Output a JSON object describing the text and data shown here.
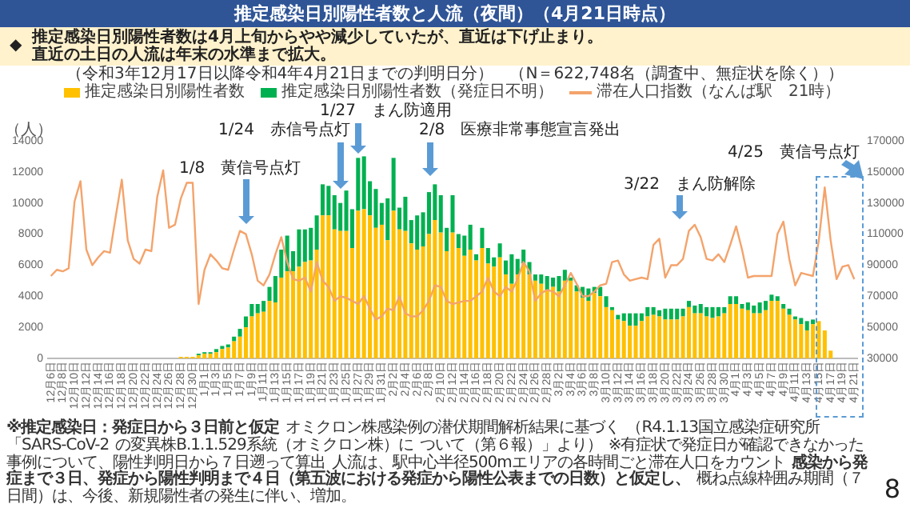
{
  "chart_data": {
    "type": "bar",
    "stacked": true,
    "title": "推定感染日別陽性者数と人流（夜間）（4月21日時点）",
    "subtitle": "（令和3年12月17日以降令和4年4月21日までの判明日分）　（N＝622,748名（調査中、無症状を除く））",
    "ylabel": "（人）",
    "categories": [
      "12月6日",
      null,
      "12月8日",
      null,
      "12月10日",
      null,
      "12月12日",
      null,
      "12月14日",
      null,
      "12月16日",
      null,
      "12月18日",
      null,
      "12月20日",
      null,
      "12月22日",
      null,
      "12月24日",
      null,
      "12月26日",
      null,
      "12月28日",
      null,
      "12月30日",
      null,
      "1月1日",
      null,
      "1月3日",
      null,
      "1月5日",
      null,
      "1月7日",
      null,
      "1月9日",
      null,
      "1月11日",
      null,
      "1月13日",
      null,
      "1月15日",
      null,
      "1月17日",
      null,
      "1月19日",
      null,
      "1月21日",
      null,
      "1月23日",
      null,
      "1月25日",
      null,
      "1月27日",
      null,
      "1月29日",
      null,
      "1月31日",
      null,
      "2月2日",
      null,
      "2月4日",
      null,
      "2月6日",
      null,
      "2月8日",
      null,
      "2月10日",
      null,
      "2月12日",
      null,
      "2月14日",
      null,
      "2月16日",
      null,
      "2月18日",
      null,
      "2月20日",
      null,
      "2月22日",
      null,
      "2月24日",
      null,
      "2月26日",
      null,
      "2月28日",
      null,
      "3月2日",
      null,
      "3月4日",
      null,
      "3月6日",
      null,
      "3月8日",
      null,
      "3月10日",
      null,
      "3月12日",
      null,
      "3月14日",
      null,
      "3月16日",
      null,
      "3月18日",
      null,
      "3月20日",
      null,
      "3月22日",
      null,
      "3月24日",
      null,
      "3月26日",
      null,
      "3月28日",
      null,
      "3月30日",
      null,
      "4月1日",
      null,
      "4月3日",
      null,
      "4月5日",
      null,
      "4月7日",
      null,
      "4月9日",
      null,
      "4月11日",
      null,
      "4月13日",
      null,
      "4月15日",
      null,
      "4月17日",
      null,
      "4月19日",
      null,
      "4月21日"
    ],
    "series": [
      {
        "name": "推定感染日別陽性者数",
        "color": "#ffc000",
        "values": [
          null,
          null,
          null,
          null,
          null,
          null,
          null,
          null,
          null,
          null,
          null,
          null,
          null,
          null,
          null,
          null,
          null,
          null,
          null,
          null,
          null,
          null,
          100,
          100,
          100,
          200,
          300,
          300,
          400,
          600,
          700,
          1100,
          1400,
          2000,
          2700,
          2900,
          3000,
          3700,
          3600,
          5200,
          5600,
          5600,
          5900,
          6200,
          6300,
          7000,
          9200,
          9200,
          8300,
          8200,
          8200,
          7100,
          9500,
          9600,
          9200,
          8400,
          8600,
          7600,
          9500,
          8300,
          8200,
          7400,
          7000,
          7200,
          8000,
          8900,
          8100,
          6900,
          8100,
          7100,
          6600,
          7000,
          6300,
          7100,
          6100,
          5900,
          6500,
          5400,
          4800,
          5400,
          6100,
          5400,
          5000,
          4800,
          4400,
          4600,
          4300,
          5000,
          5000,
          4300,
          3900,
          3700,
          4200,
          4000,
          3300,
          3100,
          2500,
          2400,
          2100,
          2100,
          2400,
          2700,
          2800,
          2700,
          2500,
          2500,
          2500,
          2700,
          3300,
          2900,
          2900,
          2700,
          2600,
          2700,
          2900,
          3500,
          3500,
          3200,
          3100,
          2900,
          2900,
          3100,
          3700,
          3700,
          3200,
          2800,
          2500,
          2200,
          1800,
          2200,
          2400,
          1800,
          500,
          null,
          null,
          null,
          null
        ]
      },
      {
        "name": "推定感染日別陽性者数（発症日不明）",
        "color": "#00b050",
        "values": [
          null,
          null,
          null,
          null,
          null,
          null,
          null,
          null,
          null,
          null,
          null,
          null,
          null,
          null,
          null,
          null,
          null,
          null,
          null,
          null,
          null,
          null,
          0,
          0,
          0,
          100,
          100,
          100,
          200,
          200,
          200,
          300,
          500,
          700,
          800,
          600,
          700,
          900,
          1700,
          1800,
          2300,
          1300,
          2400,
          2100,
          2100,
          2200,
          2000,
          1900,
          2200,
          1800,
          2600,
          2500,
          3400,
          3400,
          2200,
          2500,
          1400,
          2700,
          3400,
          1400,
          2200,
          1500,
          2200,
          2200,
          2700,
          2300,
          2400,
          1500,
          2400,
          900,
          1300,
          1600,
          400,
          1300,
          1000,
          600,
          900,
          900,
          1900,
          1000,
          900,
          800,
          400,
          600,
          900,
          600,
          1000,
          700,
          200,
          400,
          700,
          800,
          400,
          600,
          700,
          200,
          300,
          500,
          800,
          800,
          500,
          600,
          500,
          400,
          700,
          700,
          700,
          500,
          400,
          500,
          600,
          600,
          700,
          600,
          400,
          500,
          500,
          300,
          500,
          500,
          700,
          600,
          400,
          300,
          300,
          400,
          200,
          400,
          600,
          300,
          0,
          0,
          0,
          null,
          null,
          null,
          null
        ]
      },
      {
        "name": "滞在人口指数（なんば駅　21時）",
        "type": "line",
        "axis": "y2",
        "color": "#f4a36b",
        "values": [
          83000,
          87000,
          86000,
          88000,
          131000,
          144000,
          100000,
          90000,
          95000,
          99000,
          98000,
          122000,
          145000,
          106000,
          94000,
          91000,
          100000,
          99000,
          134000,
          151000,
          114000,
          116000,
          133000,
          143000,
          143000,
          65000,
          87000,
          97000,
          93000,
          88000,
          87000,
          100000,
          112000,
          110000,
          97000,
          80000,
          77000,
          84000,
          97000,
          108000,
          92000,
          81000,
          80000,
          82000,
          73000,
          92000,
          80000,
          76000,
          67000,
          70000,
          69000,
          67000,
          65000,
          70000,
          62000,
          55000,
          57000,
          62000,
          61000,
          70000,
          59000,
          57000,
          57000,
          61000,
          67000,
          77000,
          76000,
          67000,
          65000,
          66000,
          67000,
          67000,
          70000,
          73000,
          82000,
          73000,
          70000,
          76000,
          73000,
          81000,
          92000,
          86000,
          67000,
          72000,
          74000,
          73000,
          70000,
          77000,
          85000,
          78000,
          70000,
          70000,
          73000,
          77000,
          78000,
          92000,
          93000,
          84000,
          80000,
          81000,
          82000,
          81000,
          103000,
          107000,
          82000,
          90000,
          90000,
          94000,
          112000,
          116000,
          108000,
          94000,
          93000,
          97000,
          92000,
          103000,
          115000,
          100000,
          82000,
          83000,
          83000,
          83000,
          83000,
          110000,
          118000,
          94000,
          77000,
          85000,
          84000,
          83000,
          106000,
          140000,
          106000,
          81000,
          89000,
          90000,
          81000
        ]
      }
    ],
    "ylim": [
      0,
      14000
    ],
    "yticks": [
      0,
      2000,
      4000,
      6000,
      8000,
      10000,
      12000,
      14000
    ],
    "y2lim": [
      30000,
      170000
    ],
    "y2ticks": [
      30000,
      50000,
      70000,
      90000,
      110000,
      130000,
      150000,
      170000
    ],
    "legend": "top left",
    "marker": "none",
    "line_style": "solid",
    "annotations": [
      "◆",
      "推定感染日別陽性者数は4月上旬からやや減少していたが、直近は下げ止まり。",
      "直近の土日の人流は年末の水準まで拡大。",
      "1/8　黄信号点灯",
      "1/24　赤信号点灯",
      "1/27　まん防適用",
      "2/8　医療非常事態宣言発出",
      "3/22　まん防解除",
      "4/25　黄信号点灯",
      "※推定感染日：発症日から３日前と仮定",
      "オミクロン株感染例の潜伏期間解析結果に基づく",
      "（R4.1.13国立感染症研究所「SARS-CoV-2",
      "の変異株B.1.1.529系統（オミクロン株）に",
      "ついて（第６報）」より）",
      "※有症状で発症日が確認できなかった事例について、陽性判明日から７日遡って算出",
      "人流は、駅中心半径500mエリアの各時間ごと滞在人口をカウント",
      "感染から発症まで３日、発症から陽性判明まで４日（第五波における発症から陽性公表までの日数）と仮定し、",
      "概ね点線枠囲み期間（７日間）は、今後、新規陽性者の発生に伴い、増加。",
      "8"
    ]
  }
}
